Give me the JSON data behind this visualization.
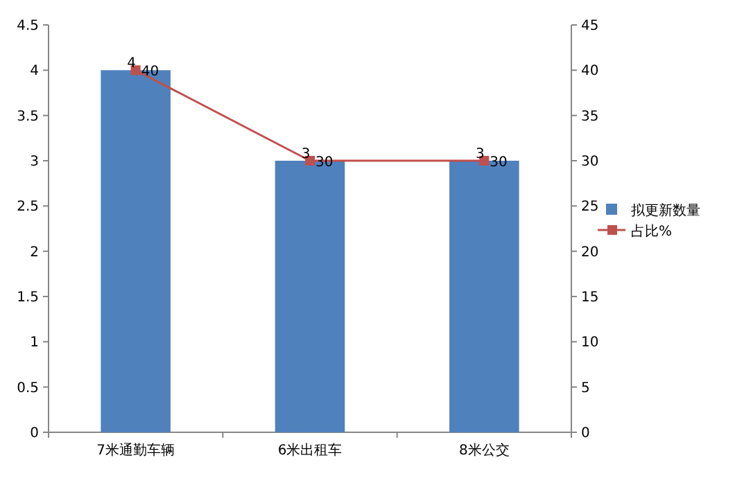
{
  "chart_data": {
    "type": "bar",
    "categories": [
      "7米通勤车辆",
      "6米出租车",
      "8米公交"
    ],
    "series": [
      {
        "name": "拟更新数量",
        "color": "#4f81bd",
        "values": [
          4,
          3,
          3
        ]
      },
      {
        "name": "占比%",
        "type": "line",
        "axis": "y2",
        "color": "#c0504d",
        "marker": "square",
        "values": [
          40,
          30,
          30
        ]
      }
    ],
    "ylim": [
      0,
      4.5
    ],
    "yticks": [
      0,
      0.5,
      1,
      1.5,
      2,
      2.5,
      3,
      3.5,
      4,
      4.5
    ],
    "y2lim": [
      0,
      45
    ],
    "y2ticks": [
      0,
      5,
      10,
      15,
      20,
      25,
      30,
      35,
      40,
      45
    ],
    "data_labels": true,
    "legend": "right",
    "grid": false
  }
}
